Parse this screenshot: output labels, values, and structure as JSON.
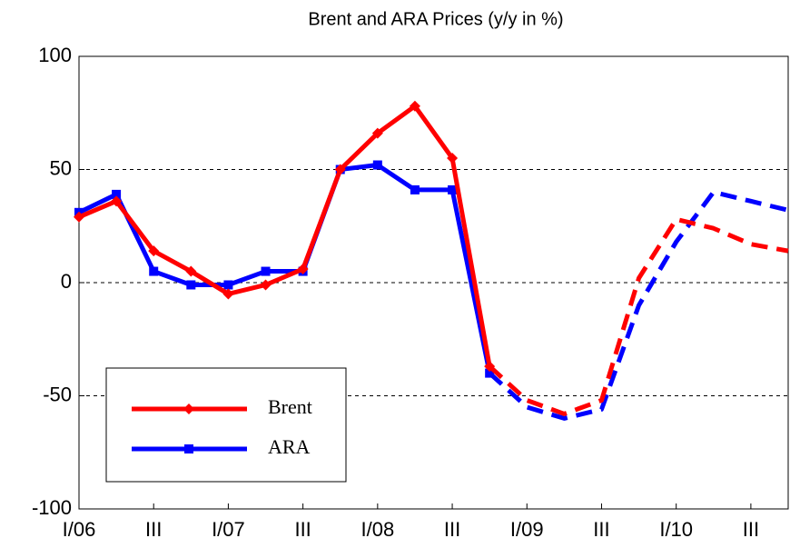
{
  "chart_data": {
    "type": "line",
    "title": "Brent and ARA Prices (y/y  in %)",
    "categories": [
      "I/06",
      null,
      "III",
      null,
      "I/07",
      null,
      "III",
      null,
      "I/08",
      null,
      "III",
      null,
      "I/09",
      null,
      "III",
      null,
      "I/10",
      null,
      "III",
      null
    ],
    "series": [
      {
        "name": "Brent",
        "color": "#ff0000",
        "marker": "diamond",
        "values": [
          29,
          36,
          14,
          5,
          -5,
          -1,
          6,
          50,
          66,
          78,
          55,
          -37,
          -52,
          -58,
          -52,
          2,
          28,
          24,
          17,
          14
        ]
      },
      {
        "name": "ARA",
        "color": "#0000ff",
        "marker": "square",
        "values": [
          31,
          39,
          5,
          -1,
          -1,
          5,
          5,
          50,
          52,
          41,
          41,
          -40,
          -55,
          -60,
          -56,
          -10,
          18,
          40,
          36,
          32
        ]
      }
    ],
    "dash_from": 11,
    "ylim": [
      -100,
      100
    ],
    "yticks": [
      -100,
      -50,
      0,
      50,
      100
    ],
    "grid": true,
    "legend": "lower left"
  }
}
